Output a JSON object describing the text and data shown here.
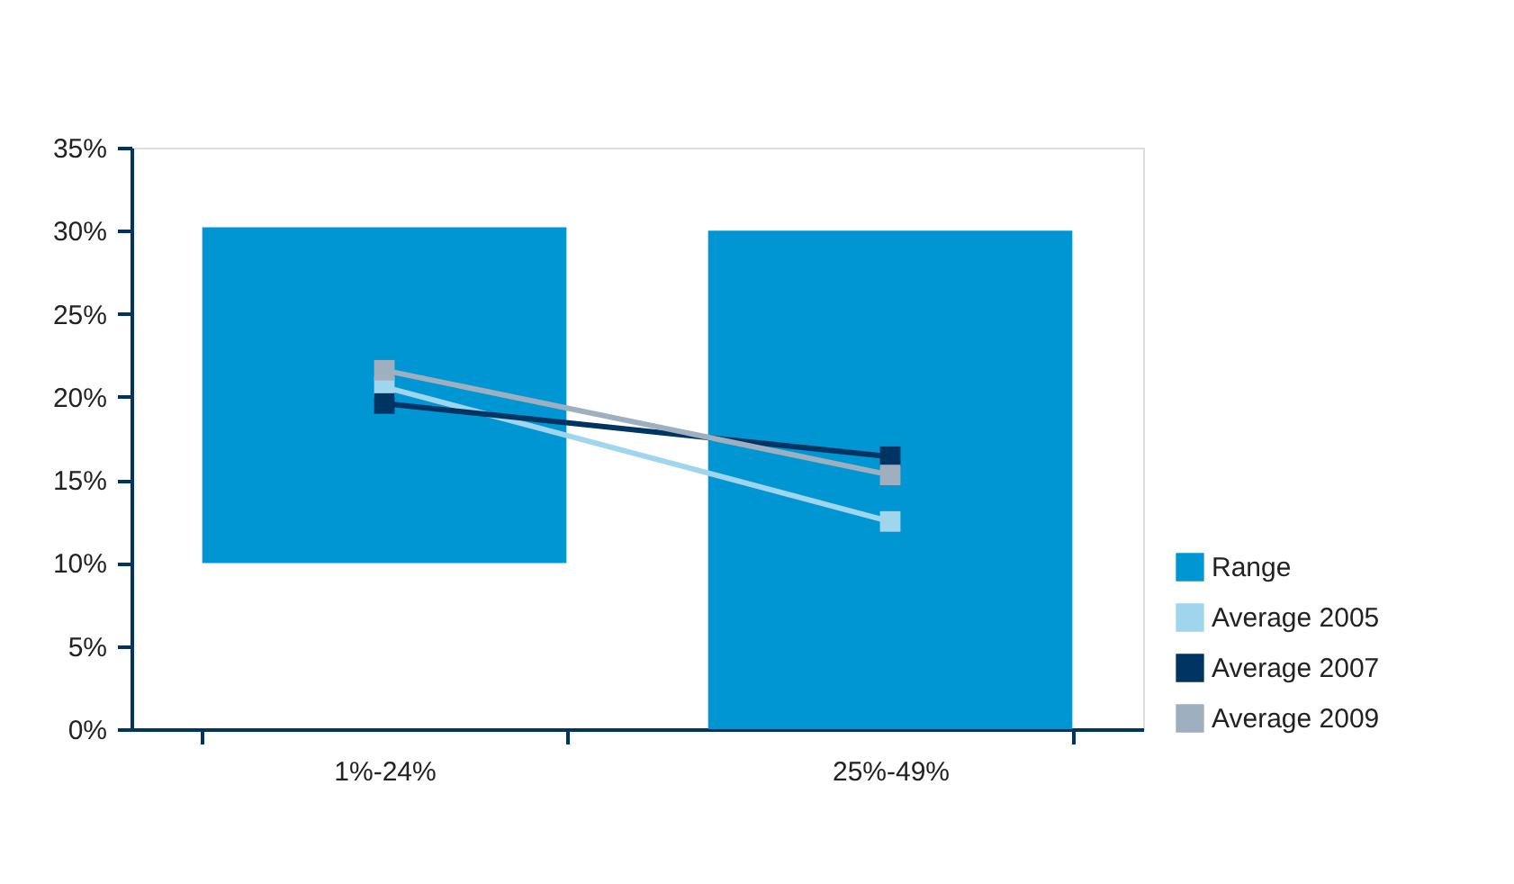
{
  "chart_data": {
    "type": "bar",
    "categories": [
      "1%-24%",
      "25%-49%"
    ],
    "series": [
      {
        "name": "Range",
        "color": "#0096d3",
        "values": [
          20.2,
          30
        ],
        "base": [
          10,
          0
        ]
      },
      {
        "name": "Average 2005",
        "type": "line",
        "color": "#9fd6ee",
        "values": [
          20.6,
          12.5
        ]
      },
      {
        "name": "Average 2007",
        "type": "line",
        "color": "#003462",
        "values": [
          19.6,
          16.4
        ]
      },
      {
        "name": "Average 2009",
        "type": "line",
        "color": "#9eafbf",
        "values": [
          21.6,
          15.3
        ]
      }
    ],
    "ylim": [
      0,
      35
    ],
    "yticks": [
      {
        "value": 0,
        "label": "0%"
      },
      {
        "value": 5,
        "label": "5%"
      },
      {
        "value": 10,
        "label": "10%"
      },
      {
        "value": 15,
        "label": "15%"
      },
      {
        "value": 20,
        "label": "20%"
      },
      {
        "value": 25,
        "label": "25%"
      },
      {
        "value": 30,
        "label": "30%"
      },
      {
        "value": 35,
        "label": "35%"
      }
    ],
    "grid": false,
    "legend": "bottom right",
    "marker": "square",
    "line_style": "solid"
  }
}
